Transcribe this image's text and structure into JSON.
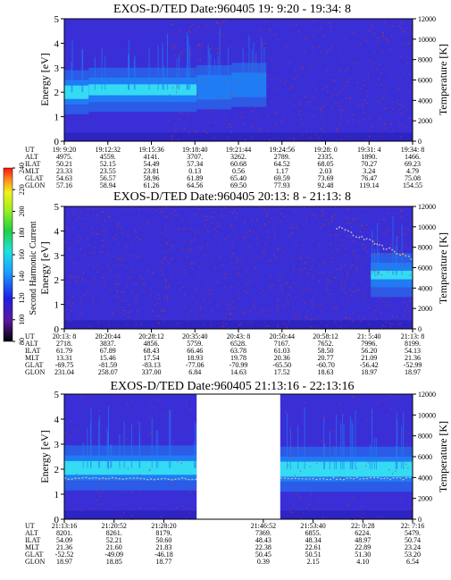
{
  "colors": {
    "background": "#ffffff",
    "plot_bg": "#3a2fd6",
    "band_mid": "#1f7ff5",
    "band_core": "#36e6f2",
    "noise": "#c8342c",
    "temp_line": "#c4c4c4"
  },
  "colorbar": {
    "label": "Second Harmonic Current",
    "ticks": [
      "240",
      "220",
      "200",
      "180",
      "160",
      "140",
      "120",
      "100",
      "80"
    ]
  },
  "chart_data": [
    {
      "type": "heatmap",
      "title": "EXOS-D/TED Date:960405 19: 9:20 - 19:34: 8",
      "ylabel": "Energy [eV]",
      "y2label": "Temperature [K]",
      "ylim": [
        0,
        5
      ],
      "y2lim": [
        0,
        12000
      ],
      "yticks": [
        "0",
        "1",
        "2",
        "3",
        "4",
        "5"
      ],
      "y2ticks": [
        "0",
        "2000",
        "4000",
        "6000",
        "8000",
        "10000",
        "12000"
      ],
      "band_segments": [
        {
          "from": 0.0,
          "to": 0.07,
          "center": 2.0,
          "core": 0.55
        },
        {
          "from": 0.07,
          "to": 0.38,
          "center": 2.1,
          "core": 0.45
        },
        {
          "from": 0.38,
          "to": 0.48,
          "center": 2.2,
          "core": 0.0
        },
        {
          "from": 0.48,
          "to": 0.58,
          "center": 2.3,
          "core": 0.0
        }
      ],
      "table": {
        "labels": [
          "UT",
          "ALT",
          "ILAT",
          "MLT",
          "GLAT",
          "GLON"
        ],
        "columns": [
          [
            "19: 9:20",
            "4975.",
            "50.21",
            "23.33",
            "54.63",
            "57.16"
          ],
          [
            "19:12:32",
            "4559.",
            "52.15",
            "23.55",
            "56.57",
            "58.94"
          ],
          [
            "19:15:36",
            "4141.",
            "54.49",
            "23.81",
            "58.96",
            "61.26"
          ],
          [
            "19:18:40",
            "3707.",
            "57.34",
            "0.13",
            "61.89",
            "64.56"
          ],
          [
            "19:21:44",
            "3262.",
            "60.68",
            "0.56",
            "65.40",
            "69.50"
          ],
          [
            "19:24:56",
            "2789.",
            "64.52",
            "1.17",
            "69.59",
            "77.93"
          ],
          [
            "19:28: 0",
            "2335.",
            "68.05",
            "2.03",
            "73.69",
            "92.48"
          ],
          [
            "19:31: 4",
            "1890.",
            "70.27",
            "3.24",
            "76.47",
            "119.14"
          ],
          [
            "19:34: 8",
            "1466.",
            "69.23",
            "4.79",
            "75.08",
            "154.55"
          ]
        ]
      }
    },
    {
      "type": "heatmap",
      "title": "EXOS-D/TED Date:960405 20:13: 8 - 21:13: 8",
      "ylabel": "Energy [eV]",
      "y2label": "Temperature [K]",
      "ylim": [
        0,
        5
      ],
      "y2lim": [
        0,
        12000
      ],
      "yticks": [
        "0",
        "1",
        "2",
        "3",
        "4",
        "5"
      ],
      "y2ticks": [
        "0",
        "2000",
        "4000",
        "6000",
        "8000",
        "10000",
        "12000"
      ],
      "band_segments": [
        {
          "from": 0.88,
          "to": 1.0,
          "center": 2.2,
          "core": 0.35
        }
      ],
      "table": {
        "labels": [
          "UT",
          "ALT",
          "ILAT",
          "MLT",
          "GLAT",
          "GLON"
        ],
        "columns": [
          [
            "20:13: 8",
            "2718.",
            "61.79",
            "13.31",
            "-69.75",
            "231.04"
          ],
          [
            "20:20:44",
            "3837.",
            "67.89",
            "15.46",
            "-81.59",
            "258.07"
          ],
          [
            "20:28:12",
            "4856.",
            "68.43",
            "17.54",
            "-83.13",
            "337.00"
          ],
          [
            "20:35:40",
            "5759.",
            "66.46",
            "18.93",
            "-77.06",
            "6.84"
          ],
          [
            "20:43: 8",
            "6528.",
            "63.78",
            "19.78",
            "-70.99",
            "14.63"
          ],
          [
            "20:50:44",
            "7167.",
            "61.03",
            "20.36",
            "-65.50",
            "17.52"
          ],
          [
            "20:58:12",
            "7652.",
            "58.50",
            "20.77",
            "-60.70",
            "18.63"
          ],
          [
            "21: 5:40",
            "7996.",
            "56.20",
            "21.09",
            "-56.42",
            "18.97"
          ],
          [
            "21:13: 8",
            "8199.",
            "54.13",
            "21.36",
            "-52.99",
            "18.97"
          ]
        ]
      }
    },
    {
      "type": "heatmap",
      "title": "EXOS-D/TED Date:960405 21:13:16 - 22:13:16",
      "ylabel": "Energy [eV]",
      "y2label": "Temperature [K]",
      "ylim": [
        0,
        5
      ],
      "y2lim": [
        0,
        12000
      ],
      "yticks": [
        "0",
        "1",
        "2",
        "3",
        "4",
        "5"
      ],
      "y2ticks": [
        "0",
        "2000",
        "4000",
        "6000",
        "8000",
        "10000",
        "12000"
      ],
      "gap": [
        0.38,
        0.62
      ],
      "band_segments": [
        {
          "from": 0.0,
          "to": 0.38,
          "center": 2.05,
          "core": 0.55
        },
        {
          "from": 0.62,
          "to": 1.0,
          "center": 2.0,
          "core": 0.6
        }
      ],
      "table": {
        "labels": [
          "UT",
          "ALT",
          "ILAT",
          "MLT",
          "GLAT",
          "GLON"
        ],
        "columns": [
          [
            "21:13:16",
            "8201.",
            "54.09",
            "21.36",
            "-52.52",
            "18.97"
          ],
          [
            "21:20:52",
            "8261.",
            "52.21",
            "21.60",
            "-49.09",
            "18.85"
          ],
          [
            "21:28:20",
            "8179.",
            "50.60",
            "21.83",
            "-46.18",
            "18.77"
          ],
          [
            "",
            "",
            "",
            "",
            "",
            ""
          ],
          [
            "21:46:52",
            "7369.",
            "48.43",
            "22.38",
            "50.45",
            "0.39"
          ],
          [
            "21:53:40",
            "6855.",
            "48.34",
            "22.61",
            "50.51",
            "2.15"
          ],
          [
            "22: 0:28",
            "6224.",
            "48.97",
            "22.89",
            "51.30",
            "4.10"
          ],
          [
            "22: 7:16",
            "5479.",
            "50.74",
            "23.24",
            "53.20",
            "6.54"
          ]
        ]
      }
    }
  ]
}
